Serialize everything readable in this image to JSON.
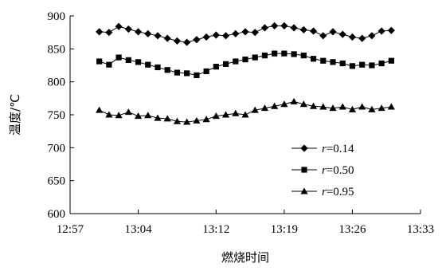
{
  "chart_data": {
    "type": "line",
    "xlabel": "燃烧时间",
    "ylabel": "温度/℃",
    "x_ticks": [
      "12:57",
      "13:04",
      "13:12",
      "13:19",
      "13:26",
      "13:33"
    ],
    "xlim": [
      "12:57",
      "13:33"
    ],
    "ylim": [
      600,
      900
    ],
    "y_ticks": [
      600,
      650,
      700,
      750,
      800,
      850,
      900
    ],
    "grid": false,
    "legend_position": "bottom-right",
    "x": [
      "13:00",
      "13:01",
      "13:02",
      "13:03",
      "13:04",
      "13:05",
      "13:06",
      "13:07",
      "13:08",
      "13:09",
      "13:10",
      "13:11",
      "13:12",
      "13:13",
      "13:14",
      "13:15",
      "13:16",
      "13:17",
      "13:18",
      "13:19",
      "13:20",
      "13:21",
      "13:22",
      "13:23",
      "13:24",
      "13:25",
      "13:26",
      "13:27",
      "13:28",
      "13:29",
      "13:30"
    ],
    "series": [
      {
        "var": "r",
        "name_suffix": "=0.14",
        "marker": "diamond",
        "color": "#000000",
        "values": [
          876,
          875,
          884,
          880,
          876,
          873,
          870,
          866,
          862,
          860,
          864,
          868,
          871,
          870,
          873,
          876,
          875,
          882,
          885,
          885,
          882,
          879,
          877,
          870,
          876,
          872,
          868,
          866,
          870,
          877,
          878
        ]
      },
      {
        "var": "r",
        "name_suffix": "=0.50",
        "marker": "square",
        "color": "#000000",
        "values": [
          831,
          826,
          837,
          833,
          830,
          826,
          822,
          818,
          814,
          813,
          810,
          816,
          823,
          827,
          831,
          834,
          837,
          840,
          843,
          843,
          842,
          840,
          835,
          832,
          830,
          828,
          824,
          826,
          825,
          828,
          832
        ]
      },
      {
        "var": "r",
        "name_suffix": "=0.95",
        "marker": "triangle",
        "color": "#000000",
        "values": [
          757,
          750,
          749,
          754,
          748,
          749,
          745,
          744,
          740,
          739,
          741,
          743,
          748,
          750,
          752,
          750,
          757,
          760,
          763,
          766,
          770,
          766,
          763,
          762,
          760,
          762,
          758,
          762,
          758,
          760,
          762
        ]
      }
    ]
  }
}
